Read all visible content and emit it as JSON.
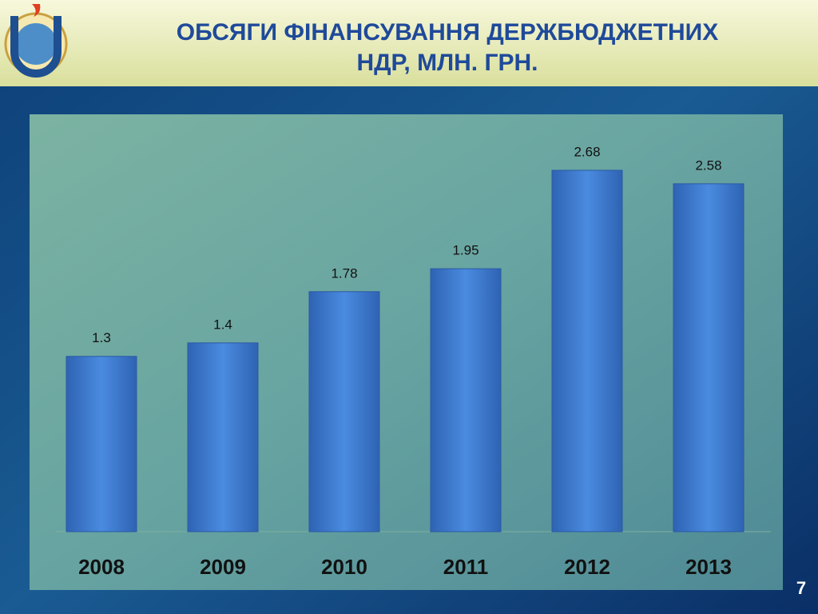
{
  "chart_data": {
    "type": "bar",
    "title": [
      "ОБСЯГИ ФІНАНСУВАННЯ ДЕРЖБЮДЖЕТНИХ",
      "НДР, МЛН. ГРН."
    ],
    "categories": [
      "2008",
      "2009",
      "2010",
      "2011",
      "2012",
      "2013"
    ],
    "values": [
      1.3,
      1.4,
      1.78,
      1.95,
      2.68,
      2.58
    ],
    "color": "#3f7fd6"
  },
  "page_number": 7
}
